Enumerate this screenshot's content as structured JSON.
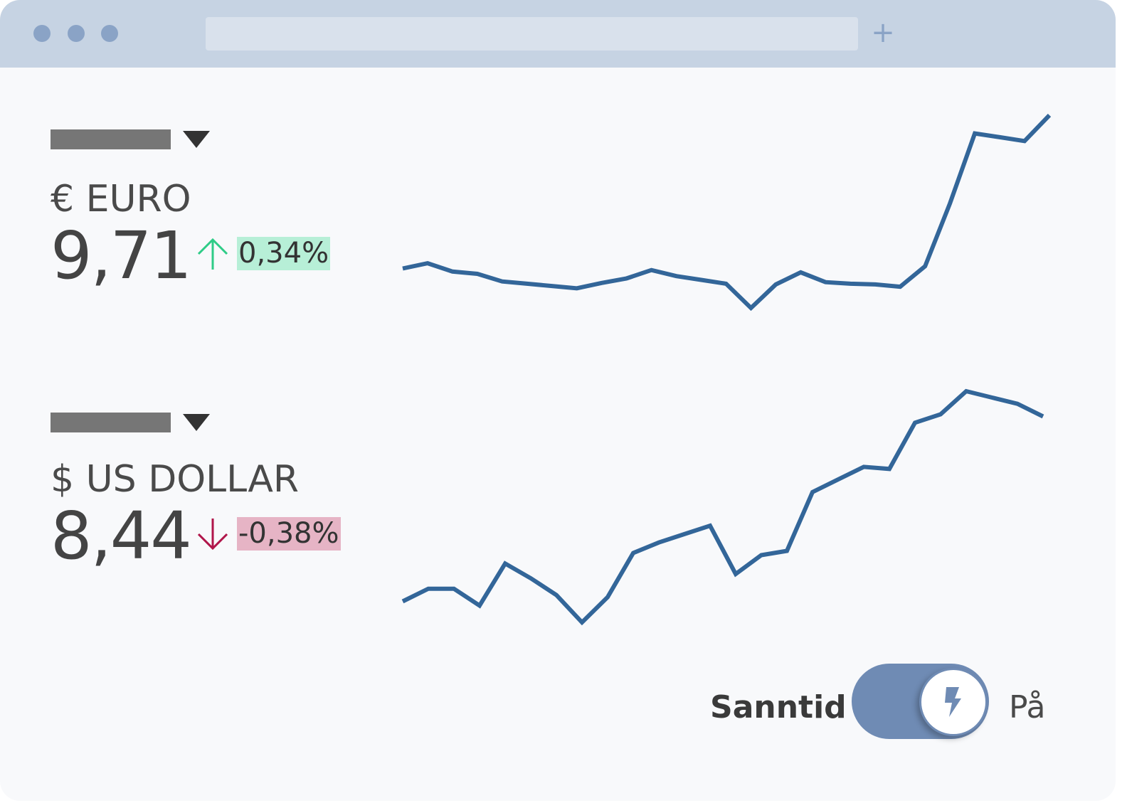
{
  "browser": {
    "new_tab_icon": "plus-icon"
  },
  "currencies": [
    {
      "name": "€ EURO",
      "value": "9,71",
      "change": "0,34%",
      "direction": "up",
      "change_color": "#2ecc87",
      "change_bg": "#b7efd7",
      "chart_data": {
        "type": "line",
        "series": [
          {
            "values": [
              5.2,
              5.9,
              4.8,
              4.5,
              3.5,
              3.2,
              2.9,
              2.6,
              3.3,
              3.9,
              5.0,
              4.2,
              3.7,
              3.2,
              0.0,
              3.1,
              4.7,
              3.4,
              3.2,
              3.1,
              2.8,
              5.5,
              13.8,
              23.0,
              22.5,
              22.0,
              25.4
            ]
          }
        ],
        "color": "#336699"
      }
    },
    {
      "name": "$ US DOLLAR",
      "value": "8,44",
      "change": "-0,38%",
      "direction": "down",
      "change_color": "#b0154a",
      "change_bg": "#e6b4c5",
      "chart_data": {
        "type": "line",
        "series": [
          {
            "values": [
              1.0,
              1.6,
              1.6,
              0.8,
              2.8,
              2.1,
              1.3,
              0.0,
              1.2,
              3.3,
              3.8,
              4.2,
              4.6,
              2.3,
              3.2,
              3.4,
              6.2,
              6.8,
              7.4,
              7.3,
              9.5,
              9.9,
              11.0,
              10.7,
              10.4,
              9.8
            ]
          }
        ],
        "color": "#336699"
      }
    }
  ],
  "realtime": {
    "label": "Sanntid",
    "state_label": "På",
    "enabled": true,
    "icon": "lightning-bolt-icon",
    "track_color": "#6f8bb4"
  }
}
